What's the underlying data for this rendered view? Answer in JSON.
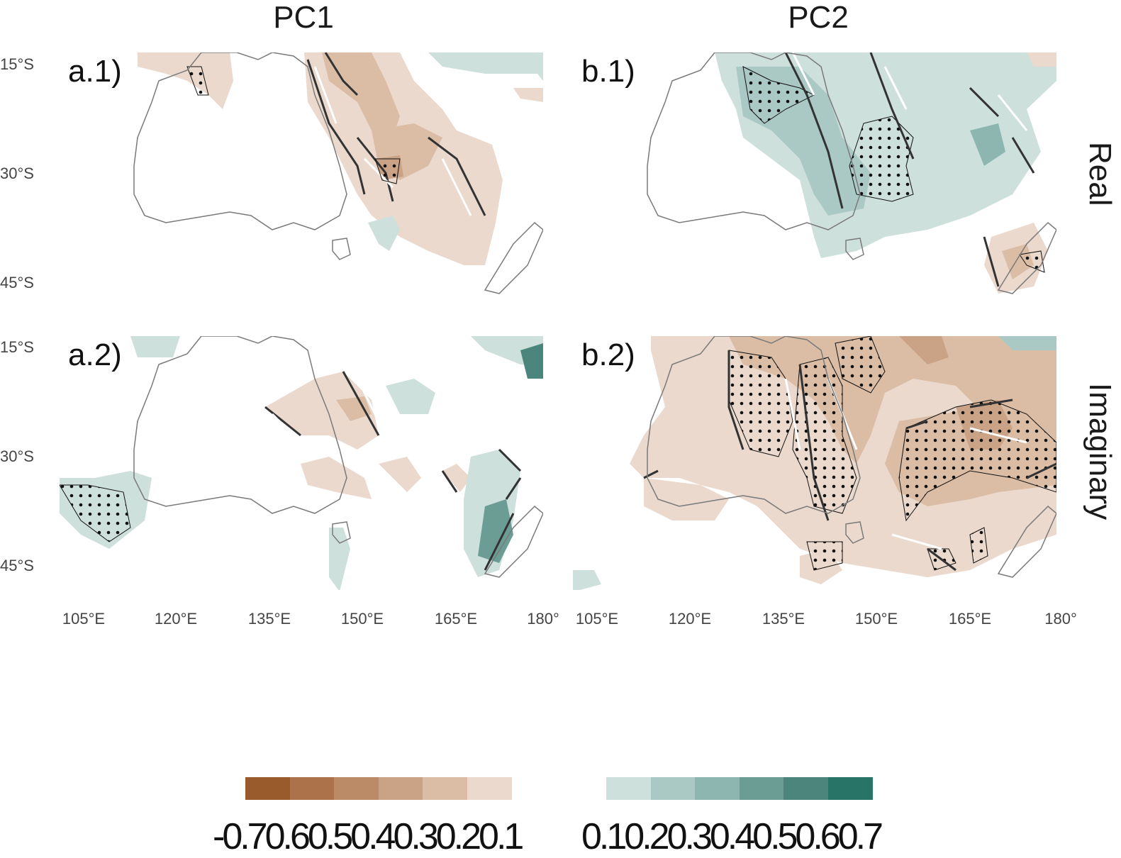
{
  "columns": [
    "PC1",
    "PC2"
  ],
  "rows": [
    "Real",
    "Imaginary"
  ],
  "panels": [
    {
      "id": "a1",
      "label": "a.1)"
    },
    {
      "id": "b1",
      "label": "b.1)"
    },
    {
      "id": "a2",
      "label": "a.2)"
    },
    {
      "id": "b2",
      "label": "b.2)"
    }
  ],
  "lat_ticks": [
    "15°S",
    "30°S",
    "45°S"
  ],
  "lon_ticks": [
    "105°E",
    "120°E",
    "135°E",
    "150°E",
    "165°E",
    "180°"
  ],
  "colorbar": {
    "negative": {
      "labels": [
        "-0.7",
        "0.6",
        "0.5",
        "0.4",
        "0.3",
        "0.2",
        "0.1"
      ],
      "label_text": "-0.70.60.50.40.30.20.1",
      "colors": [
        "#9a5b2c",
        "#ac7249",
        "#bb8b68",
        "#caa286",
        "#dbbda6",
        "#ead9cc"
      ]
    },
    "positive": {
      "labels": [
        "0.1",
        "0.2",
        "0.3",
        "0.4",
        "0.5",
        "0.6",
        "0.7"
      ],
      "label_text": "0.10.20.30.40.50.60.7",
      "colors": [
        "#cde0dc",
        "#abc9c4",
        "#8cb6af",
        "#6b9d95",
        "#4b857c",
        "#287466"
      ]
    }
  },
  "colors": {
    "brown_light": "#ead9cc",
    "brown_mid": "#dbbda6",
    "brown_dark": "#caa286",
    "teal_light": "#cde0dc",
    "teal_mid": "#abc9c4",
    "teal_dark": "#6b9d95",
    "coast": "#7a7a7a"
  }
}
